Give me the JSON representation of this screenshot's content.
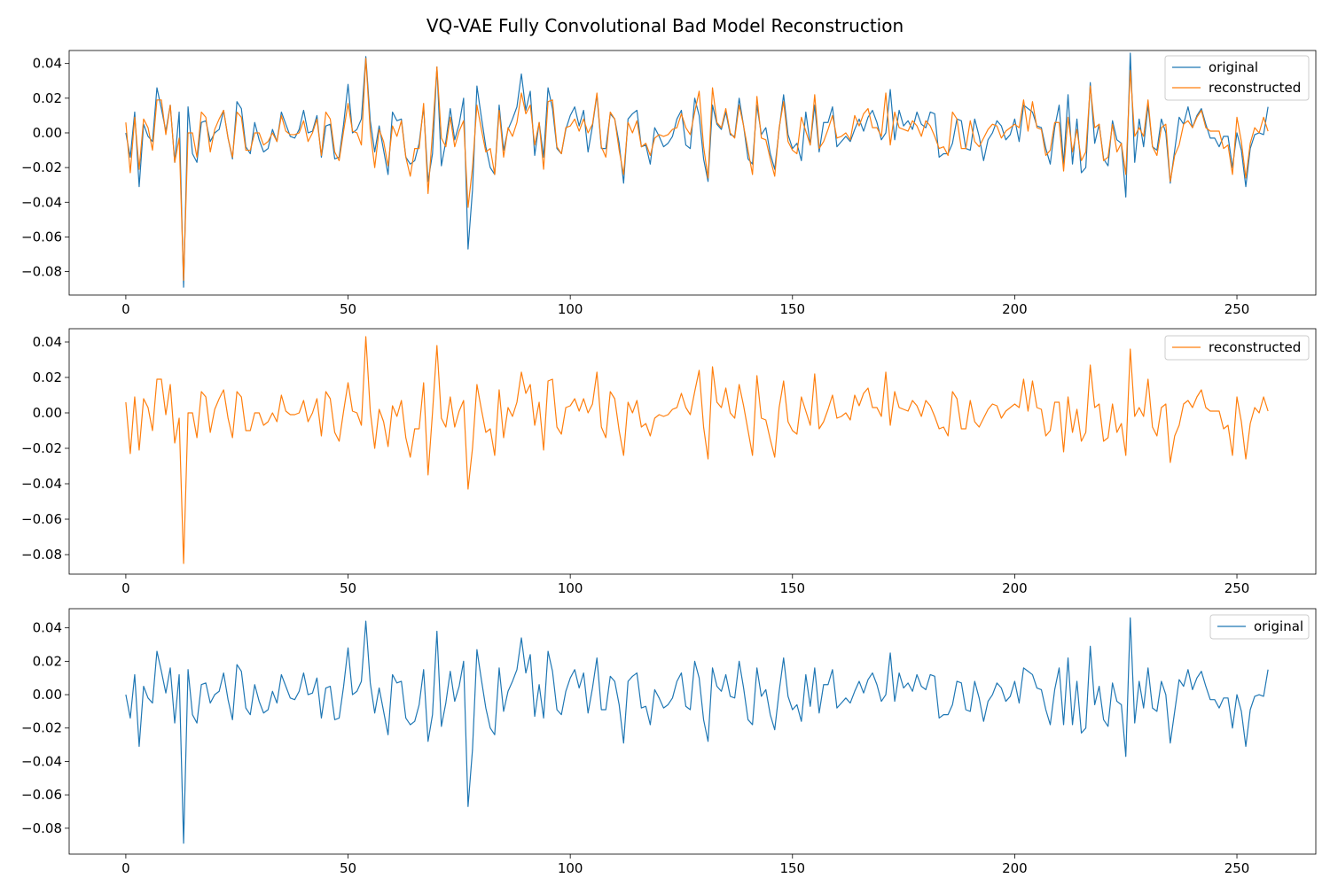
{
  "figure": {
    "title": "VQ-VAE Fully Convolutional Bad Model Reconstruction"
  },
  "colors": {
    "original": "#1f77b4",
    "reconstructed": "#ff7f0e"
  },
  "chart_data": [
    {
      "type": "line",
      "title": "",
      "xlabel": "",
      "ylabel": "",
      "xlim": [
        -12.75,
        267.75
      ],
      "ylim": [
        -0.0935,
        0.0475
      ],
      "xticks": [
        0,
        50,
        100,
        150,
        200,
        250
      ],
      "yticks": [
        -0.08,
        -0.06,
        -0.04,
        -0.02,
        0.0,
        0.02,
        0.04
      ],
      "grid": false,
      "legend": "top-right",
      "series": [
        {
          "name": "original",
          "values": [
            0.0,
            -0.014,
            0.012,
            -0.031,
            0.005,
            -0.002,
            -0.005,
            0.026,
            0.014,
            0.001,
            0.016,
            -0.017,
            0.012,
            -0.089,
            0.015,
            -0.012,
            -0.017,
            0.006,
            0.007,
            -0.005,
            0.0,
            0.002,
            0.013,
            -0.003,
            -0.015,
            0.018,
            0.014,
            -0.008,
            -0.012,
            0.006,
            -0.004,
            -0.011,
            -0.009,
            0.002,
            -0.005,
            0.012,
            0.005,
            -0.002,
            -0.003,
            0.002,
            0.013,
            0.0,
            0.001,
            0.01,
            -0.014,
            0.004,
            0.005,
            -0.015,
            -0.014,
            0.005,
            0.028,
            0.0,
            0.002,
            0.008,
            0.044,
            0.007,
            -0.011,
            0.004,
            -0.01,
            -0.024,
            0.012,
            0.007,
            0.008,
            -0.014,
            -0.018,
            -0.016,
            -0.006,
            0.015,
            -0.028,
            -0.012,
            0.038,
            -0.019,
            -0.005,
            0.014,
            -0.004,
            0.005,
            0.02,
            -0.067,
            -0.033,
            0.027,
            0.009,
            -0.008,
            -0.02,
            -0.024,
            0.016,
            -0.01,
            0.002,
            0.008,
            0.015,
            0.034,
            0.013,
            0.024,
            -0.013,
            0.006,
            -0.014,
            0.026,
            0.014,
            -0.009,
            -0.012,
            0.002,
            0.01,
            0.015,
            0.004,
            0.013,
            -0.011,
            0.004,
            0.022,
            -0.009,
            -0.009,
            0.011,
            0.008,
            -0.006,
            -0.029,
            0.008,
            0.011,
            0.013,
            -0.008,
            -0.007,
            -0.018,
            0.003,
            -0.002,
            -0.008,
            -0.006,
            -0.002,
            0.008,
            0.013,
            -0.007,
            -0.009,
            0.02,
            0.01,
            -0.015,
            -0.028,
            0.016,
            0.005,
            0.002,
            0.012,
            -0.001,
            -0.002,
            0.02,
            0.004,
            -0.015,
            -0.018,
            0.016,
            -0.001,
            0.003,
            -0.012,
            -0.021,
            0.002,
            0.022,
            -0.001,
            -0.009,
            -0.006,
            -0.016,
            0.012,
            -0.007,
            0.016,
            -0.011,
            0.006,
            0.006,
            0.015,
            -0.008,
            -0.005,
            -0.002,
            -0.005,
            0.002,
            0.008,
            0.001,
            0.009,
            0.013,
            0.006,
            -0.004,
            0.0,
            0.025,
            -0.004,
            0.013,
            0.004,
            0.007,
            0.002,
            0.012,
            0.005,
            0.003,
            0.012,
            0.011,
            -0.014,
            -0.012,
            -0.012,
            -0.006,
            0.008,
            0.007,
            -0.009,
            -0.01,
            0.008,
            -0.002,
            -0.016,
            -0.004,
            0.0,
            0.007,
            0.004,
            -0.004,
            -0.001,
            0.008,
            -0.005,
            0.016,
            0.014,
            0.012,
            0.004,
            0.003,
            -0.009,
            -0.018,
            0.003,
            0.016,
            -0.018,
            0.022,
            -0.018,
            0.008,
            -0.023,
            -0.02,
            0.029,
            -0.006,
            0.005,
            -0.015,
            -0.019,
            0.007,
            -0.004,
            -0.006,
            -0.037,
            0.046,
            -0.017,
            0.008,
            -0.008,
            0.016,
            -0.008,
            -0.01,
            0.008,
            0.0,
            -0.029,
            -0.01,
            0.009,
            0.005,
            0.015,
            0.003,
            0.01,
            0.014,
            0.005,
            -0.003,
            -0.003,
            -0.008,
            -0.002,
            -0.002,
            -0.02,
            0.0,
            -0.01,
            -0.031,
            -0.009,
            -0.001,
            0.0,
            -0.001,
            0.015
          ]
        },
        {
          "name": "reconstructed",
          "values": [
            0.006,
            -0.023,
            0.009,
            -0.021,
            0.008,
            0.003,
            -0.01,
            0.019,
            0.019,
            -0.001,
            0.016,
            -0.017,
            -0.003,
            -0.085,
            0.0,
            0.0,
            -0.014,
            0.012,
            0.009,
            -0.011,
            0.002,
            0.008,
            0.013,
            -0.003,
            -0.014,
            0.012,
            0.009,
            -0.01,
            -0.01,
            0.0,
            0.0,
            -0.007,
            -0.005,
            0.0,
            -0.005,
            0.01,
            0.001,
            -0.001,
            -0.001,
            0.0,
            0.007,
            -0.005,
            0.0,
            0.008,
            -0.013,
            0.012,
            0.008,
            -0.011,
            -0.016,
            0.001,
            0.017,
            0.001,
            0.0,
            -0.007,
            0.043,
            0.001,
            -0.02,
            0.002,
            -0.005,
            -0.019,
            0.004,
            -0.002,
            0.007,
            -0.014,
            -0.025,
            -0.009,
            -0.009,
            0.017,
            -0.035,
            0.0,
            0.038,
            -0.003,
            -0.008,
            0.009,
            -0.008,
            0.001,
            0.007,
            -0.043,
            -0.02,
            0.016,
            0.002,
            -0.011,
            -0.009,
            -0.024,
            0.013,
            -0.014,
            0.003,
            -0.002,
            0.006,
            0.023,
            0.011,
            0.016,
            -0.007,
            0.006,
            -0.021,
            0.018,
            0.019,
            -0.008,
            -0.012,
            0.003,
            0.004,
            0.008,
            0.001,
            0.008,
            0.0,
            0.005,
            0.023,
            -0.008,
            -0.014,
            0.012,
            0.008,
            -0.01,
            -0.024,
            0.006,
            0.0,
            0.007,
            -0.008,
            -0.006,
            -0.013,
            -0.003,
            -0.001,
            -0.002,
            -0.001,
            0.002,
            0.003,
            0.011,
            0.003,
            -0.001,
            0.012,
            0.024,
            -0.008,
            -0.026,
            0.026,
            0.006,
            0.003,
            0.014,
            0.0,
            -0.003,
            0.016,
            0.004,
            -0.01,
            -0.024,
            0.021,
            -0.003,
            -0.004,
            -0.015,
            -0.025,
            0.003,
            0.018,
            -0.005,
            -0.01,
            -0.012,
            0.009,
            0.001,
            -0.007,
            0.022,
            -0.009,
            -0.005,
            0.002,
            0.01,
            -0.003,
            -0.002,
            0.0,
            -0.004,
            0.01,
            0.004,
            0.011,
            0.014,
            0.003,
            0.003,
            -0.002,
            0.023,
            -0.007,
            0.012,
            0.003,
            0.002,
            0.001,
            0.007,
            0.004,
            -0.002,
            0.007,
            0.004,
            -0.002,
            -0.009,
            -0.008,
            -0.013,
            0.012,
            0.008,
            -0.009,
            -0.009,
            0.007,
            -0.005,
            -0.008,
            -0.003,
            0.002,
            0.005,
            0.004,
            -0.003,
            0.001,
            0.003,
            0.005,
            0.003,
            0.019,
            0.001,
            0.018,
            0.003,
            0.002,
            -0.013,
            -0.01,
            0.006,
            0.006,
            -0.022,
            0.009,
            -0.011,
            0.002,
            -0.016,
            -0.011,
            0.027,
            0.003,
            0.005,
            -0.016,
            -0.014,
            0.005,
            -0.011,
            -0.006,
            -0.024,
            0.036,
            -0.002,
            0.003,
            -0.002,
            0.019,
            -0.008,
            -0.013,
            0.003,
            0.005,
            -0.028,
            -0.013,
            -0.007,
            0.005,
            0.007,
            0.003,
            0.009,
            0.013,
            0.003,
            0.001,
            0.001,
            0.001,
            -0.009,
            -0.007,
            -0.024,
            0.009,
            -0.005,
            -0.026,
            -0.006,
            0.003,
            0.0,
            0.009,
            0.001
          ]
        }
      ]
    },
    {
      "type": "line",
      "title": "",
      "xlabel": "",
      "ylabel": "",
      "xlim": [
        -12.75,
        267.75
      ],
      "ylim": [
        -0.091,
        0.0475
      ],
      "xticks": [
        0,
        50,
        100,
        150,
        200,
        250
      ],
      "yticks": [
        -0.08,
        -0.06,
        -0.04,
        -0.02,
        0.0,
        0.02,
        0.04
      ],
      "grid": false,
      "legend": "top-right",
      "series": [
        {
          "name": "reconstructed",
          "ref": "reconstructed"
        }
      ]
    },
    {
      "type": "line",
      "title": "",
      "xlabel": "",
      "ylabel": "",
      "xlim": [
        -12.75,
        267.75
      ],
      "ylim": [
        -0.0955,
        0.0515
      ],
      "xticks": [
        0,
        50,
        100,
        150,
        200,
        250
      ],
      "yticks": [
        -0.08,
        -0.06,
        -0.04,
        -0.02,
        0.0,
        0.02,
        0.04
      ],
      "grid": false,
      "legend": "top-right",
      "series": [
        {
          "name": "original",
          "ref": "original"
        }
      ]
    }
  ]
}
